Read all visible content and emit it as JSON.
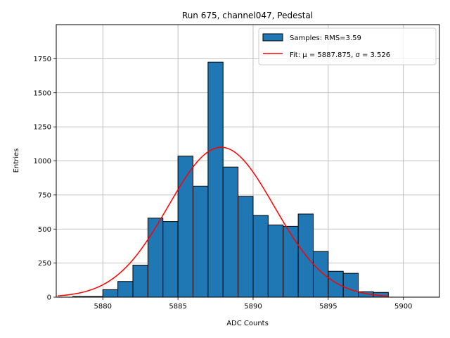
{
  "chart_data": {
    "type": "bar",
    "title": "Run 675, channel047, Pedestal",
    "xlabel": "ADC Counts",
    "ylabel": "Entries",
    "xlim": [
      5876.9,
      5902.4
    ],
    "ylim": [
      0,
      2000
    ],
    "xticks": [
      5880,
      5885,
      5890,
      5895,
      5900
    ],
    "yticks": [
      0,
      250,
      500,
      750,
      1000,
      1250,
      1500,
      1750
    ],
    "grid": true,
    "legend_position": "top-right",
    "bin_width": 1,
    "bins": [
      {
        "x": 5878,
        "count": 5
      },
      {
        "x": 5879,
        "count": 5
      },
      {
        "x": 5880,
        "count": 55
      },
      {
        "x": 5881,
        "count": 115
      },
      {
        "x": 5882,
        "count": 235
      },
      {
        "x": 5883,
        "count": 580
      },
      {
        "x": 5884,
        "count": 555
      },
      {
        "x": 5885,
        "count": 1035
      },
      {
        "x": 5886,
        "count": 815
      },
      {
        "x": 5887,
        "count": 1725
      },
      {
        "x": 5888,
        "count": 955
      },
      {
        "x": 5889,
        "count": 740
      },
      {
        "x": 5890,
        "count": 600
      },
      {
        "x": 5891,
        "count": 530
      },
      {
        "x": 5892,
        "count": 520
      },
      {
        "x": 5893,
        "count": 610
      },
      {
        "x": 5894,
        "count": 335
      },
      {
        "x": 5895,
        "count": 190
      },
      {
        "x": 5896,
        "count": 175
      },
      {
        "x": 5897,
        "count": 40
      },
      {
        "x": 5898,
        "count": 35
      }
    ],
    "fit": {
      "mu": 5887.875,
      "sigma": 3.526,
      "amplitude": 1100,
      "x_range": [
        5877,
        5899
      ]
    },
    "series": [
      {
        "name": "Samples: RMS=3.59",
        "color": "#1f77b4"
      },
      {
        "name": "Fit: μ = 5887.875, σ = 3.526",
        "color": "#ff0000"
      }
    ]
  },
  "colors": {
    "bar_fill": "#1f77b4",
    "bar_edge": "#000000",
    "fit_line": "#ff0000",
    "grid": "#b0b0b0"
  }
}
